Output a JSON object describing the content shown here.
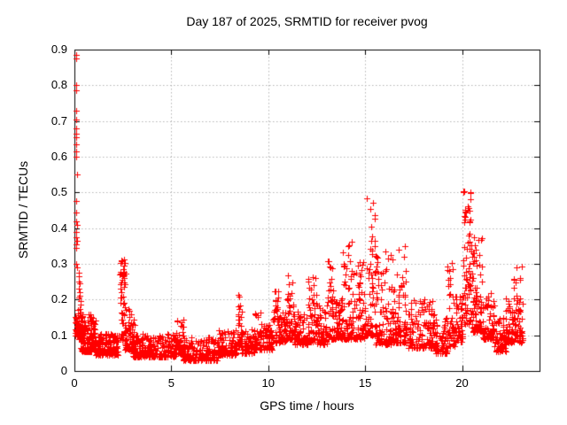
{
  "figure": {
    "background_color": "#ffffff",
    "text_color": "#000000",
    "grid_color": "#b4b4b4",
    "axis_color": "#000000"
  },
  "chart_data": {
    "type": "scatter",
    "title": "Day 187 of 2025, SRMTID for receiver pvog",
    "xlabel": "GPS time / hours",
    "ylabel": "SRMTID / TECUs",
    "xlim": [
      0,
      24
    ],
    "ylim": [
      0,
      0.9
    ],
    "grid": true,
    "legend": "none",
    "marker": {
      "shape": "plus",
      "size": 7,
      "color": "#ff0000"
    },
    "xticks": [
      {
        "v": 0,
        "label": "0"
      },
      {
        "v": 5,
        "label": "5"
      },
      {
        "v": 10,
        "label": "10"
      },
      {
        "v": 15,
        "label": "15"
      },
      {
        "v": 20,
        "label": "20"
      }
    ],
    "yticks": [
      {
        "v": 0.0,
        "label": "0"
      },
      {
        "v": 0.1,
        "label": "0.1"
      },
      {
        "v": 0.2,
        "label": "0.2"
      },
      {
        "v": 0.3,
        "label": "0.3"
      },
      {
        "v": 0.4,
        "label": "0.4"
      },
      {
        "v": 0.5,
        "label": "0.5"
      },
      {
        "v": 0.6,
        "label": "0.6"
      },
      {
        "v": 0.7,
        "label": "0.7"
      },
      {
        "v": 0.8,
        "label": "0.8"
      },
      {
        "v": 0.9,
        "label": "0.9"
      }
    ],
    "seed": 187,
    "outlier_points": [
      [
        0.08,
        0.885
      ],
      [
        0.11,
        0.875
      ],
      [
        0.09,
        0.8
      ],
      [
        0.1,
        0.785
      ],
      [
        0.09,
        0.73
      ],
      [
        0.1,
        0.705
      ],
      [
        0.1,
        0.68
      ],
      [
        0.09,
        0.665
      ],
      [
        0.11,
        0.655
      ],
      [
        0.1,
        0.635
      ],
      [
        0.09,
        0.615
      ],
      [
        0.1,
        0.6
      ],
      [
        0.12,
        0.55
      ],
      [
        0.1,
        0.475
      ],
      [
        0.11,
        0.445
      ],
      [
        0.1,
        0.42
      ],
      [
        0.12,
        0.41
      ],
      [
        0.11,
        0.39
      ],
      [
        0.1,
        0.375
      ],
      [
        0.12,
        0.365
      ],
      [
        0.11,
        0.355
      ],
      [
        0.1,
        0.345
      ],
      [
        0.11,
        0.3
      ],
      [
        0.13,
        0.29
      ],
      [
        0.22,
        0.275
      ],
      [
        0.25,
        0.265
      ],
      [
        0.24,
        0.25
      ],
      [
        0.27,
        0.245
      ],
      [
        0.23,
        0.23
      ],
      [
        0.26,
        0.22
      ],
      [
        0.28,
        0.21
      ],
      [
        0.25,
        0.205
      ],
      [
        0.3,
        0.195
      ],
      [
        0.33,
        0.185
      ]
    ],
    "band_format": "[x_start_hr, x_end_hr, n_points, y_min, y_max, skew_toward_min]",
    "bands": [
      [
        0.02,
        0.18,
        25,
        0.1,
        0.155,
        1.5
      ],
      [
        0.18,
        0.45,
        50,
        0.09,
        0.185,
        1.8
      ],
      [
        0.3,
        0.9,
        90,
        0.055,
        0.16,
        2.0
      ],
      [
        0.8,
        1.1,
        40,
        0.06,
        0.155,
        1.8
      ],
      [
        1.0,
        2.3,
        140,
        0.045,
        0.105,
        1.8
      ],
      [
        2.35,
        2.65,
        55,
        0.09,
        0.315,
        1.6
      ],
      [
        2.6,
        3.1,
        70,
        0.06,
        0.185,
        2.2
      ],
      [
        3.0,
        5.25,
        220,
        0.04,
        0.105,
        1.8
      ],
      [
        5.25,
        5.65,
        45,
        0.05,
        0.145,
        1.8
      ],
      [
        5.6,
        7.4,
        190,
        0.03,
        0.095,
        1.8
      ],
      [
        7.4,
        8.35,
        100,
        0.045,
        0.115,
        1.9
      ],
      [
        8.4,
        8.65,
        30,
        0.07,
        0.215,
        1.7
      ],
      [
        8.6,
        9.3,
        70,
        0.05,
        0.12,
        1.9
      ],
      [
        9.3,
        9.7,
        45,
        0.06,
        0.165,
        1.8
      ],
      [
        9.7,
        10.2,
        55,
        0.06,
        0.135,
        1.8
      ],
      [
        10.2,
        10.5,
        35,
        0.08,
        0.225,
        1.8
      ],
      [
        10.5,
        10.95,
        50,
        0.08,
        0.165,
        1.8
      ],
      [
        10.95,
        11.3,
        45,
        0.09,
        0.275,
        1.9
      ],
      [
        11.3,
        12.05,
        85,
        0.075,
        0.175,
        1.9
      ],
      [
        12.05,
        12.5,
        50,
        0.08,
        0.265,
        1.9
      ],
      [
        12.5,
        13.05,
        60,
        0.075,
        0.185,
        1.9
      ],
      [
        13.05,
        13.4,
        45,
        0.09,
        0.315,
        2.0
      ],
      [
        13.4,
        13.85,
        55,
        0.09,
        0.205,
        1.8
      ],
      [
        13.85,
        14.5,
        75,
        0.09,
        0.365,
        2.2
      ],
      [
        14.5,
        15.05,
        65,
        0.09,
        0.305,
        2.2
      ],
      [
        15.05,
        15.5,
        60,
        0.1,
        0.49,
        2.4
      ],
      [
        15.5,
        16.45,
        110,
        0.075,
        0.335,
        2.4
      ],
      [
        16.45,
        17.25,
        90,
        0.08,
        0.35,
        2.6
      ],
      [
        17.25,
        18.6,
        130,
        0.065,
        0.2,
        2.2
      ],
      [
        18.6,
        19.25,
        65,
        0.05,
        0.15,
        2.0
      ],
      [
        19.25,
        19.6,
        45,
        0.07,
        0.34,
        2.3
      ],
      [
        19.6,
        20.05,
        50,
        0.08,
        0.21,
        2.0
      ],
      [
        20.05,
        20.45,
        70,
        0.13,
        0.505,
        1.6
      ],
      [
        20.45,
        21.05,
        90,
        0.11,
        0.385,
        2.2
      ],
      [
        21.05,
        21.65,
        70,
        0.09,
        0.225,
        2.0
      ],
      [
        21.65,
        22.25,
        65,
        0.055,
        0.15,
        1.9
      ],
      [
        22.25,
        22.65,
        45,
        0.08,
        0.205,
        1.9
      ],
      [
        22.65,
        23.15,
        60,
        0.08,
        0.315,
        2.0
      ]
    ]
  }
}
